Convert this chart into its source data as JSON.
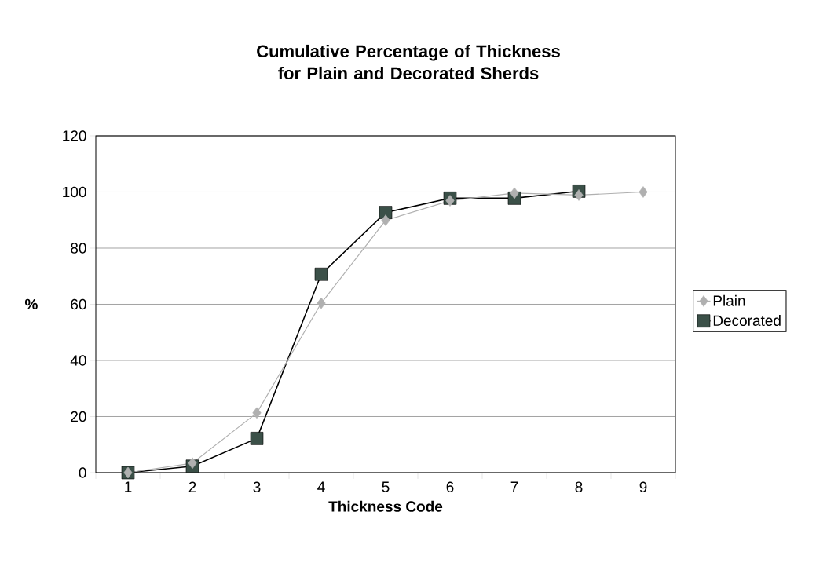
{
  "chart_data": {
    "type": "line",
    "title": "Cumulative Percentage of Thickness for Plain and Decorated Sherds",
    "xlabel": "Thickness Code",
    "ylabel": "%",
    "categories": [
      "1",
      "2",
      "3",
      "4",
      "5",
      "6",
      "7",
      "8",
      "9"
    ],
    "series": [
      {
        "name": "Plain",
        "color": "#b0b0b0",
        "marker": "diamond",
        "values": [
          0,
          3.4,
          21.3,
          60.4,
          89.9,
          96.9,
          99.6,
          98.9,
          100
        ]
      },
      {
        "name": "Decorated",
        "color": "#3b5048",
        "marker": "square",
        "values": [
          0,
          2.3,
          12.2,
          70.7,
          92.7,
          97.8,
          97.8,
          100.3,
          null
        ]
      }
    ],
    "ylim": [
      0,
      120
    ],
    "yticks": [
      0,
      20,
      40,
      60,
      80,
      100,
      120
    ],
    "grid": "y",
    "legend": "right"
  }
}
